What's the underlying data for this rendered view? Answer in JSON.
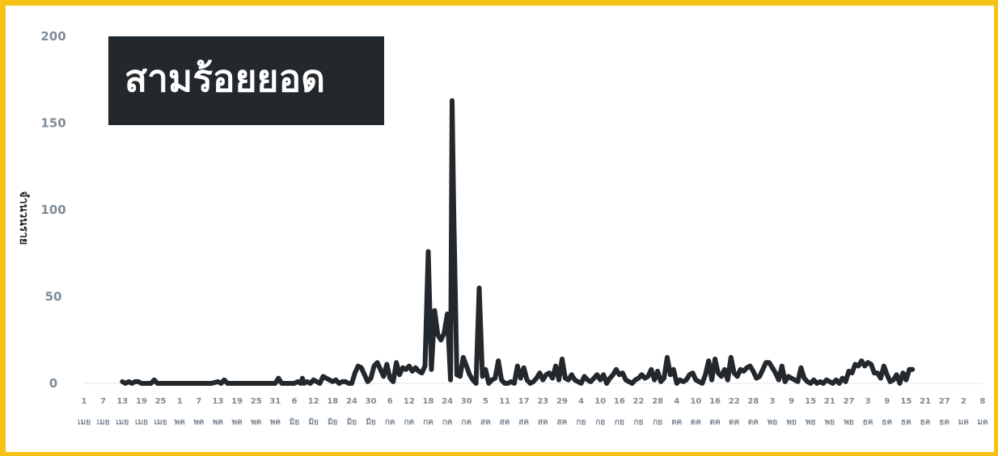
{
  "colors": {
    "frame": "#f6c216",
    "line": "#23282d",
    "tick_text": "#7f8b96",
    "title_bg": "#23282d",
    "title_text": "#ffffff"
  },
  "title_box": {
    "text": "สามร้อยยอด"
  },
  "chart_data": {
    "type": "line",
    "ylabel": "จำนวนราย",
    "ylim": [
      0,
      200
    ],
    "yticks": [
      "0",
      "50",
      "100",
      "150",
      "200"
    ],
    "grid": false,
    "xtick_days": [
      "1",
      "7",
      "13",
      "19",
      "25",
      "1",
      "7",
      "13",
      "19",
      "25",
      "31",
      "6",
      "12",
      "18",
      "24",
      "30",
      "6",
      "12",
      "18",
      "24",
      "30",
      "5",
      "11",
      "17",
      "23",
      "29",
      "4",
      "10",
      "16",
      "22",
      "28",
      "4",
      "10",
      "16",
      "22",
      "28",
      "3",
      "9",
      "15",
      "21",
      "27",
      "3",
      "9",
      "15",
      "21",
      "27",
      "2",
      "8"
    ],
    "xtick_months": [
      "เมย",
      "เมย",
      "เมย",
      "เมย",
      "เมย",
      "พค",
      "พค",
      "พค",
      "พค",
      "พค",
      "พค",
      "มิย",
      "มิย",
      "มิย",
      "มิย",
      "มิย",
      "กค",
      "กค",
      "กค",
      "กค",
      "กค",
      "สค",
      "สค",
      "สค",
      "สค",
      "สค",
      "กย",
      "กย",
      "กย",
      "กย",
      "กย",
      "ตค",
      "ตค",
      "ตค",
      "ตค",
      "ตค",
      "พย",
      "พย",
      "พย",
      "พย",
      "พย",
      "ธค",
      "ธค",
      "ธค",
      "ธค",
      "ธค",
      "มค",
      "มค"
    ],
    "series": [
      {
        "values": [
          [
            12,
            1
          ],
          [
            13,
            0
          ],
          [
            14,
            1
          ],
          [
            15,
            0
          ],
          [
            16,
            1
          ],
          [
            17,
            1
          ],
          [
            18,
            0
          ],
          [
            19,
            0
          ],
          [
            20,
            0
          ],
          [
            21,
            0
          ],
          [
            22,
            2
          ],
          [
            23,
            0
          ],
          [
            24,
            0
          ],
          [
            25,
            0
          ],
          [
            40,
            0
          ],
          [
            42,
            1
          ],
          [
            43,
            0
          ],
          [
            44,
            2
          ],
          [
            45,
            0
          ],
          [
            60,
            0
          ],
          [
            61,
            3
          ],
          [
            62,
            0
          ],
          [
            66,
            0
          ],
          [
            67,
            1
          ],
          [
            68,
            0
          ],
          [
            68.5,
            3
          ],
          [
            69,
            0
          ],
          [
            70,
            1
          ],
          [
            71,
            0
          ],
          [
            72,
            2
          ],
          [
            73,
            1
          ],
          [
            74,
            0
          ],
          [
            75,
            4
          ],
          [
            76,
            3
          ],
          [
            77,
            2
          ],
          [
            78,
            1
          ],
          [
            79,
            2
          ],
          [
            80,
            0
          ],
          [
            81,
            1
          ],
          [
            82,
            1
          ],
          [
            83,
            0
          ],
          [
            84,
            0
          ],
          [
            85,
            6
          ],
          [
            86,
            10
          ],
          [
            87,
            9
          ],
          [
            88,
            5
          ],
          [
            89,
            1
          ],
          [
            90,
            3
          ],
          [
            91,
            10
          ],
          [
            92,
            12
          ],
          [
            93,
            8
          ],
          [
            94,
            4
          ],
          [
            95,
            11
          ],
          [
            96,
            3
          ],
          [
            97,
            1
          ],
          [
            98,
            12
          ],
          [
            99,
            5
          ],
          [
            100,
            9
          ],
          [
            101,
            8
          ],
          [
            102,
            10
          ],
          [
            103,
            7
          ],
          [
            104,
            9
          ],
          [
            105,
            7
          ],
          [
            106,
            6
          ],
          [
            107,
            10
          ],
          [
            108,
            76
          ],
          [
            109,
            8
          ],
          [
            110,
            42
          ],
          [
            111,
            28
          ],
          [
            112,
            25
          ],
          [
            113,
            29
          ],
          [
            114,
            40
          ],
          [
            115,
            2
          ],
          [
            115.5,
            163
          ],
          [
            116,
            100
          ],
          [
            117,
            5
          ],
          [
            118,
            4
          ],
          [
            119,
            15
          ],
          [
            120,
            10
          ],
          [
            121,
            5
          ],
          [
            122,
            2
          ],
          [
            123,
            0
          ],
          [
            124,
            55
          ],
          [
            125,
            4
          ],
          [
            126,
            8
          ],
          [
            127,
            0
          ],
          [
            128,
            2
          ],
          [
            129,
            3
          ],
          [
            130,
            13
          ],
          [
            131,
            2
          ],
          [
            132,
            0
          ],
          [
            133,
            0
          ],
          [
            134,
            1
          ],
          [
            135,
            0
          ],
          [
            136,
            10
          ],
          [
            137,
            3
          ],
          [
            138,
            9
          ],
          [
            139,
            2
          ],
          [
            140,
            0
          ],
          [
            141,
            1
          ],
          [
            142,
            3
          ],
          [
            143,
            6
          ],
          [
            144,
            2
          ],
          [
            145,
            5
          ],
          [
            146,
            6
          ],
          [
            147,
            3
          ],
          [
            148,
            10
          ],
          [
            149,
            2
          ],
          [
            150,
            14
          ],
          [
            151,
            3
          ],
          [
            152,
            2
          ],
          [
            153,
            5
          ],
          [
            154,
            2
          ],
          [
            155,
            1
          ],
          [
            156,
            0
          ],
          [
            157,
            4
          ],
          [
            158,
            2
          ],
          [
            159,
            1
          ],
          [
            160,
            3
          ],
          [
            161,
            5
          ],
          [
            162,
            2
          ],
          [
            163,
            5
          ],
          [
            164,
            0
          ],
          [
            165,
            3
          ],
          [
            166,
            5
          ],
          [
            167,
            8
          ],
          [
            168,
            5
          ],
          [
            169,
            6
          ],
          [
            170,
            2
          ],
          [
            171,
            1
          ],
          [
            172,
            0
          ],
          [
            173,
            2
          ],
          [
            174,
            3
          ],
          [
            175,
            5
          ],
          [
            176,
            3
          ],
          [
            177,
            4
          ],
          [
            178,
            8
          ],
          [
            179,
            2
          ],
          [
            180,
            7
          ],
          [
            181,
            1
          ],
          [
            182,
            3
          ],
          [
            183,
            15
          ],
          [
            184,
            5
          ],
          [
            185,
            8
          ],
          [
            186,
            0
          ],
          [
            187,
            2
          ],
          [
            188,
            1
          ],
          [
            189,
            2
          ],
          [
            190,
            5
          ],
          [
            191,
            6
          ],
          [
            192,
            2
          ],
          [
            193,
            1
          ],
          [
            194,
            0
          ],
          [
            195,
            5
          ],
          [
            196,
            13
          ],
          [
            197,
            2
          ],
          [
            198,
            14
          ],
          [
            199,
            6
          ],
          [
            200,
            4
          ],
          [
            201,
            8
          ],
          [
            202,
            2
          ],
          [
            203,
            15
          ],
          [
            204,
            6
          ],
          [
            205,
            4
          ],
          [
            206,
            8
          ],
          [
            207,
            7
          ],
          [
            208,
            9
          ],
          [
            209,
            10
          ],
          [
            210,
            7
          ],
          [
            211,
            3
          ],
          [
            212,
            4
          ],
          [
            213,
            8
          ],
          [
            214,
            12
          ],
          [
            215,
            12
          ],
          [
            216,
            9
          ],
          [
            217,
            6
          ],
          [
            218,
            2
          ],
          [
            219,
            10
          ],
          [
            220,
            1
          ],
          [
            221,
            4
          ],
          [
            222,
            3
          ],
          [
            223,
            2
          ],
          [
            224,
            1
          ],
          [
            225,
            9
          ],
          [
            226,
            3
          ],
          [
            227,
            1
          ],
          [
            228,
            0
          ],
          [
            229,
            2
          ],
          [
            230,
            0
          ],
          [
            231,
            1
          ],
          [
            232,
            0
          ],
          [
            233,
            2
          ],
          [
            234,
            1
          ],
          [
            235,
            0
          ],
          [
            236,
            2
          ],
          [
            237,
            0
          ],
          [
            238,
            3
          ],
          [
            239,
            1
          ],
          [
            240,
            7
          ],
          [
            241,
            6
          ],
          [
            242,
            11
          ],
          [
            243,
            10
          ],
          [
            244,
            13
          ],
          [
            245,
            10
          ],
          [
            246,
            12
          ],
          [
            247,
            11
          ],
          [
            248,
            6
          ],
          [
            249,
            6
          ],
          [
            250,
            3
          ],
          [
            251,
            10
          ],
          [
            252,
            5
          ],
          [
            253,
            1
          ],
          [
            254,
            2
          ],
          [
            255,
            5
          ],
          [
            256,
            0
          ],
          [
            257,
            6
          ],
          [
            258,
            2
          ],
          [
            259,
            8
          ],
          [
            260,
            8
          ]
        ]
      }
    ]
  }
}
